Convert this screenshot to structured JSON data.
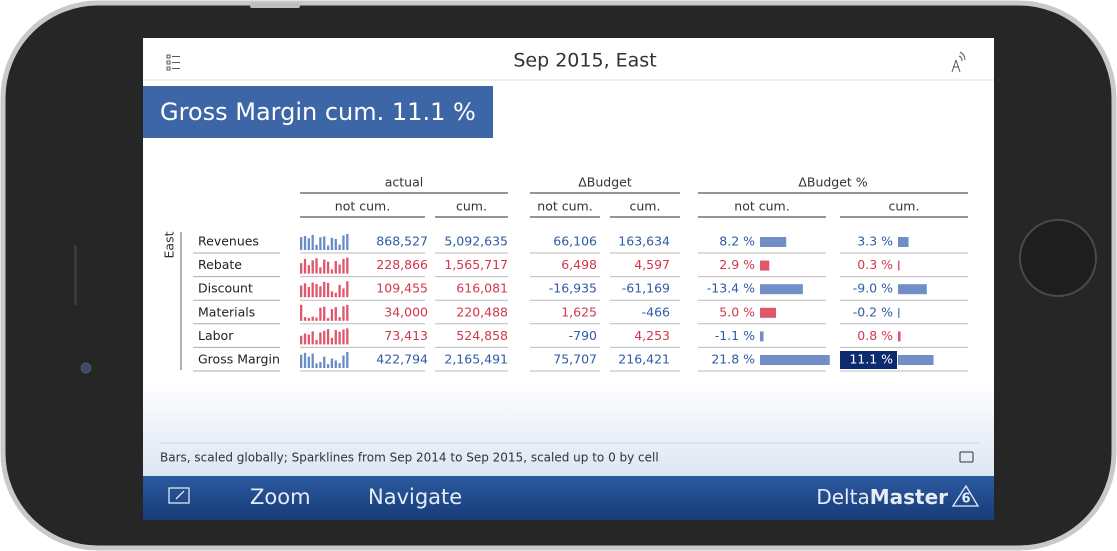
{
  "header": {
    "title": "Sep 2015, East"
  },
  "banner": {
    "title": "Gross Margin cum. 11.1 %"
  },
  "table": {
    "region": "East",
    "groups": [
      "actual",
      "ΔBudget",
      "ΔBudget %"
    ],
    "subheaders": [
      "not cum.",
      "cum.",
      "not cum.",
      "cum.",
      "not cum.",
      "cum."
    ],
    "rows": [
      {
        "label": "Revenues",
        "sparkline": [
          700000,
          760000,
          640000,
          820000,
          280000,
          690000,
          740000,
          240000,
          660000,
          600000,
          300000,
          790000,
          868527
        ],
        "cells": [
          "868,527",
          "5,092,635",
          "66,106",
          "163,634"
        ],
        "percent": [
          8.2,
          3.3
        ],
        "percent_labels": [
          "8.2 %",
          "3.3 %"
        ],
        "colors": [
          "#2f5ba6",
          "#2f5ba6",
          "#2f5ba6",
          "#2f5ba6",
          "#2f5ba6",
          "#2f5ba6"
        ]
      },
      {
        "label": "Rebate",
        "sparkline": [
          150000,
          210000,
          120000,
          190000,
          220000,
          90000,
          200000,
          170000,
          60000,
          180000,
          130000,
          210000,
          228866
        ],
        "cells": [
          "228,866",
          "1,565,717",
          "6,498",
          "4,597"
        ],
        "percent": [
          2.9,
          0.3
        ],
        "percent_labels": [
          "2.9 %",
          "0.3 %"
        ],
        "colors": [
          "#d2374d",
          "#d2374d",
          "#d2374d",
          "#d2374d",
          "#d2374d",
          "#d2374d"
        ]
      },
      {
        "label": "Discount",
        "sparkline": [
          80000,
          95000,
          70000,
          100000,
          90000,
          75000,
          105000,
          98000,
          40000,
          30000,
          85000,
          60000,
          109455
        ],
        "cells": [
          "109,455",
          "616,081",
          "-16,935",
          "-61,169"
        ],
        "percent": [
          -13.4,
          -9.0
        ],
        "percent_labels": [
          "-13.4 %",
          "-9.0 %"
        ],
        "colors": [
          "#d2374d",
          "#d2374d",
          "#2f5ba6",
          "#2f5ba6",
          "#2f5ba6",
          "#2f5ba6"
        ]
      },
      {
        "label": "Materials",
        "sparkline": [
          34000,
          8000,
          6000,
          9000,
          7000,
          28000,
          30000,
          6000,
          25000,
          29000,
          8000,
          31000,
          34000
        ],
        "cells": [
          "34,000",
          "220,488",
          "1,625",
          "-466"
        ],
        "percent": [
          5.0,
          -0.2
        ],
        "percent_labels": [
          "5.0 %",
          "-0.2 %"
        ],
        "colors": [
          "#d2374d",
          "#d2374d",
          "#d2374d",
          "#2f5ba6",
          "#d2374d",
          "#2f5ba6"
        ]
      },
      {
        "label": "Labor",
        "sparkline": [
          40000,
          50000,
          45000,
          60000,
          20000,
          55000,
          62000,
          70000,
          30000,
          66000,
          58000,
          68000,
          73413
        ],
        "cells": [
          "73,413",
          "524,858",
          "-790",
          "4,253"
        ],
        "percent": [
          -1.1,
          0.8
        ],
        "percent_labels": [
          "-1.1 %",
          "0.8 %"
        ],
        "colors": [
          "#d2374d",
          "#d2374d",
          "#2f5ba6",
          "#d2374d",
          "#2f5ba6",
          "#d2374d"
        ]
      },
      {
        "label": "Gross Margin",
        "sparkline": [
          350000,
          400000,
          300000,
          380000,
          120000,
          160000,
          300000,
          100000,
          250000,
          200000,
          130000,
          330000,
          422794
        ],
        "cells": [
          "422,794",
          "2,165,491",
          "75,707",
          "216,421"
        ],
        "percent": [
          21.8,
          11.1
        ],
        "percent_labels": [
          "21.8 %",
          "11.1 %"
        ],
        "colors": [
          "#2f5ba6",
          "#2f5ba6",
          "#2f5ba6",
          "#2f5ba6",
          "#2f5ba6",
          "#ffffff"
        ],
        "highlight_color": "#0c2a6e"
      }
    ]
  },
  "footer": {
    "note": "Bars, scaled globally; Sparklines from Sep 2014 to Sep 2015, scaled up to 0 by cell"
  },
  "toolbar": {
    "buttons": [
      "Zoom",
      "Navigate"
    ],
    "brand": [
      "Delta",
      "Master"
    ],
    "version": "6"
  }
}
